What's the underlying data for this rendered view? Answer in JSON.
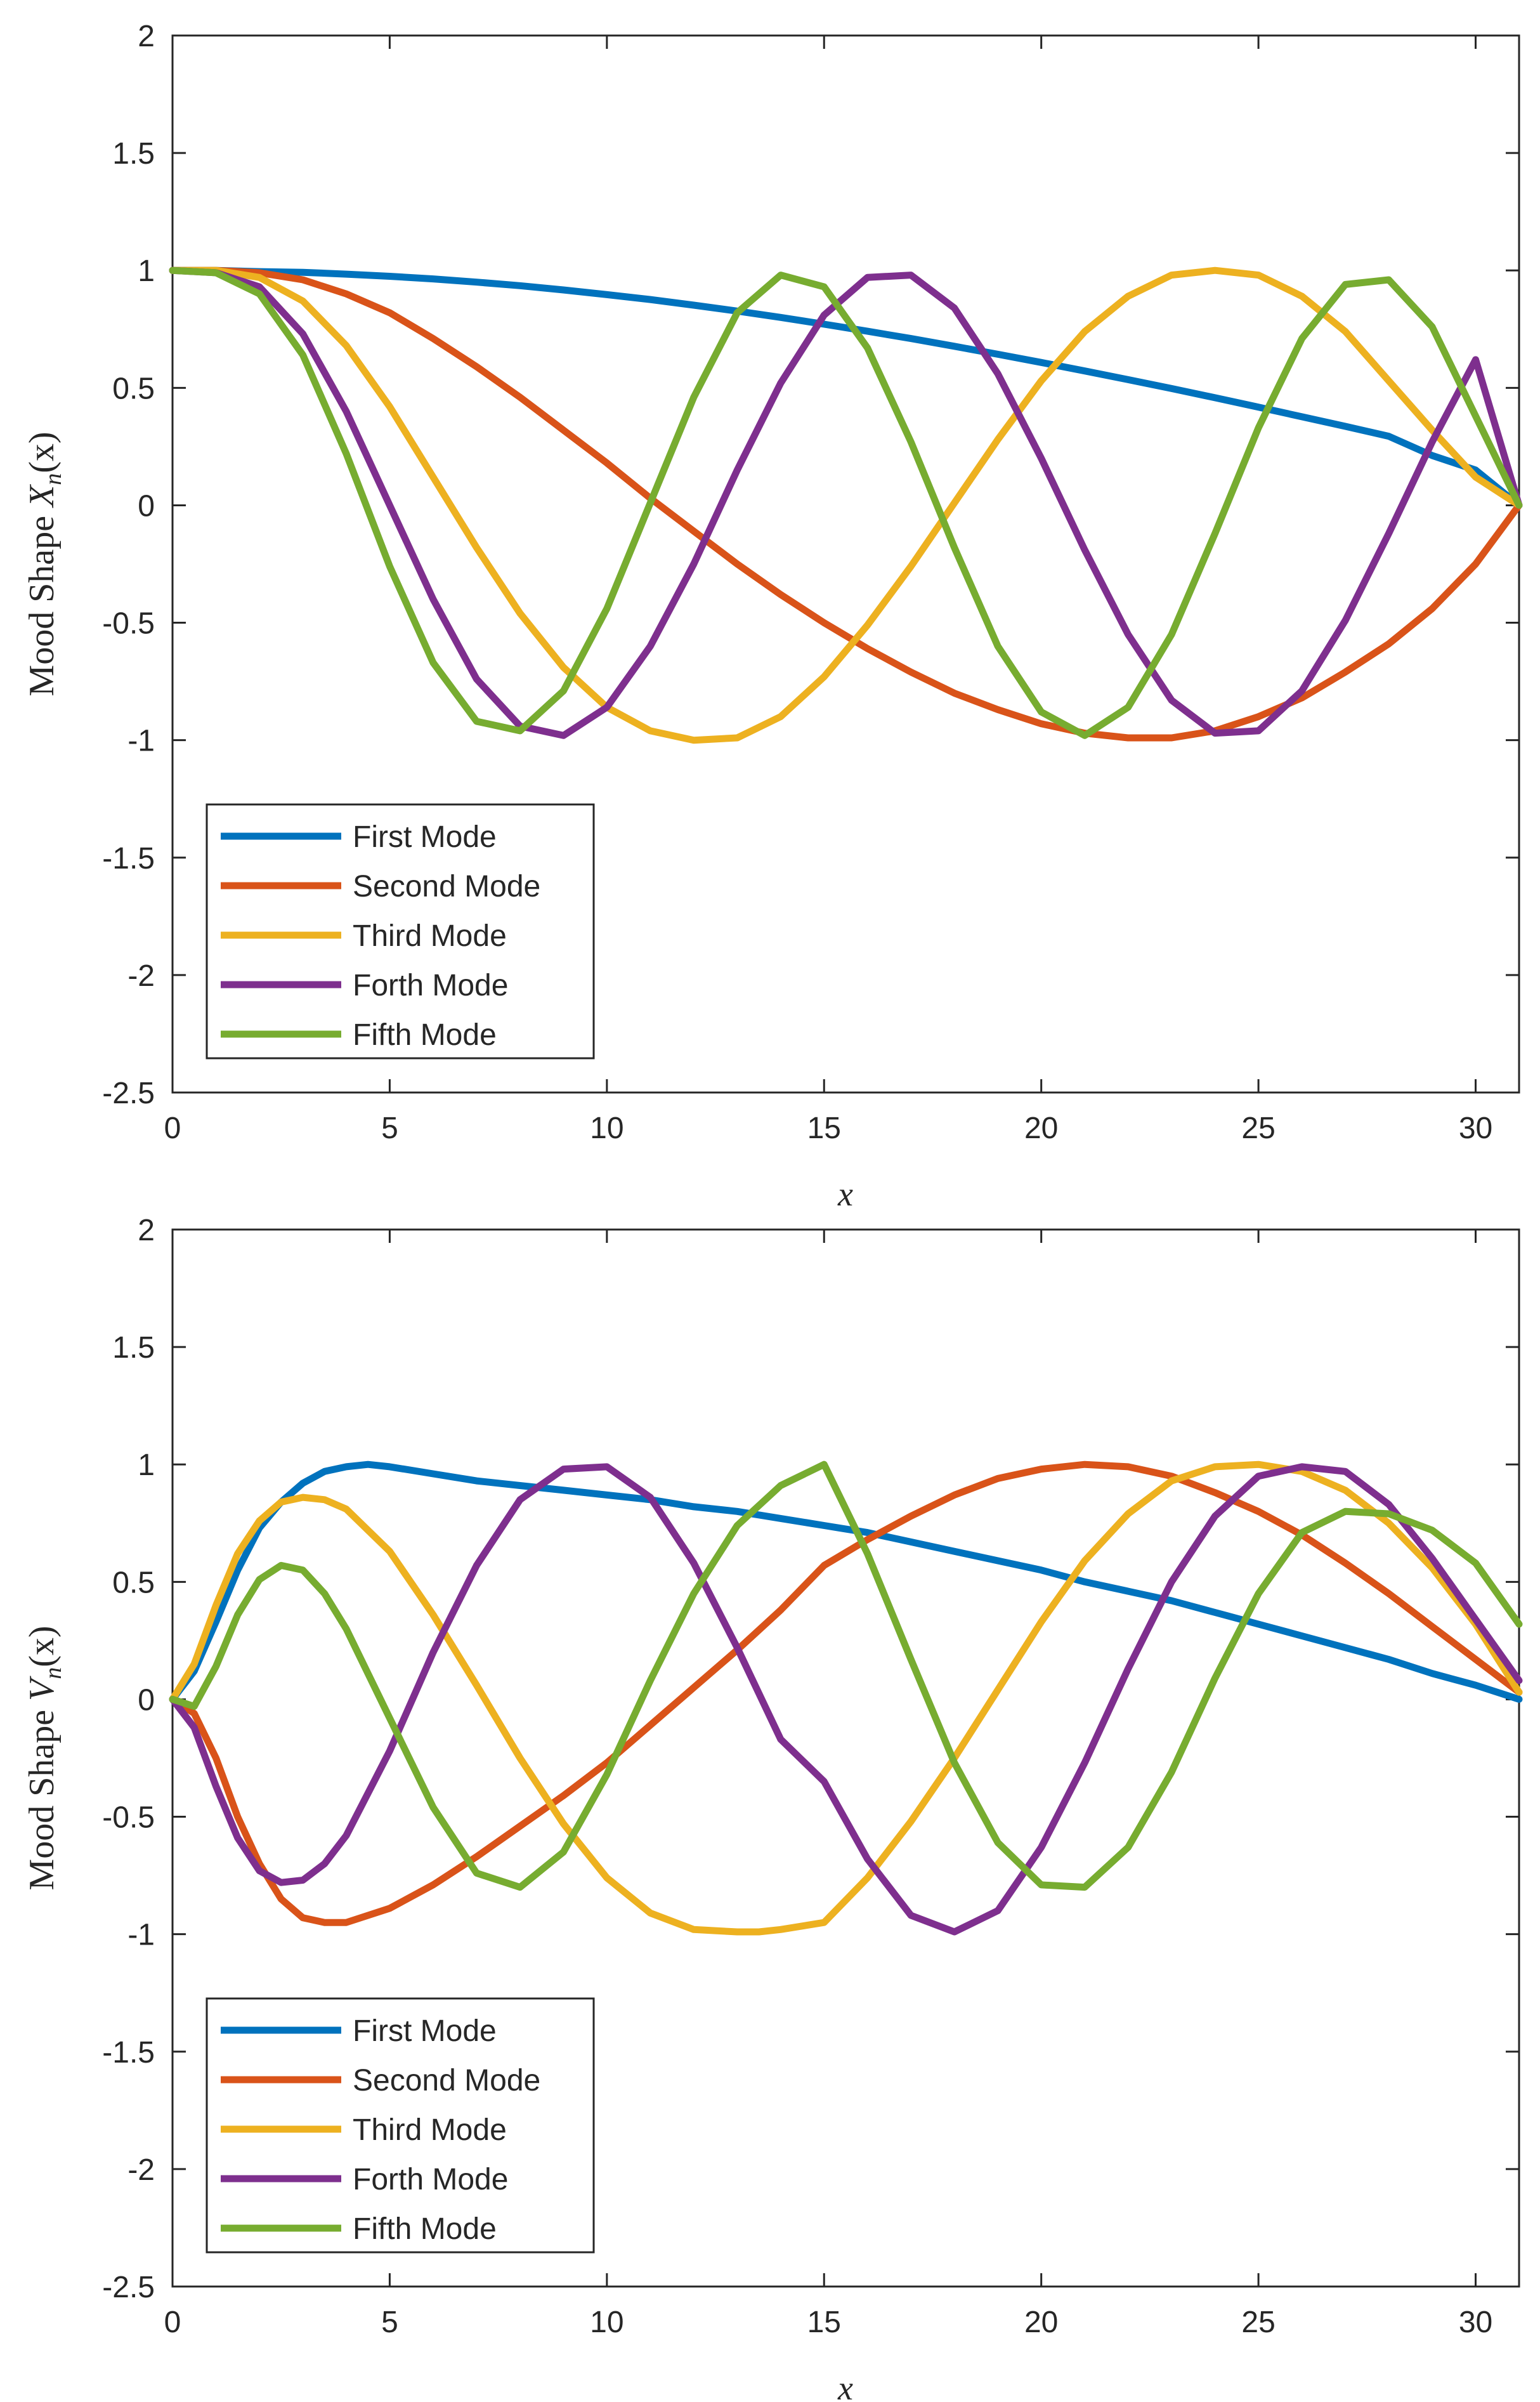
{
  "chart_data": [
    {
      "type": "line",
      "panel": "top",
      "ylabel_prefix": "Mood Shape",
      "ylabel_var": "X",
      "ylabel_sub": "n",
      "ylabel_arg": "(x)",
      "xlabel": "x",
      "xlim": [
        0,
        31
      ],
      "ylim": [
        -2.5,
        2
      ],
      "xticks": [
        0,
        5,
        10,
        15,
        20,
        25,
        30
      ],
      "yticks": [
        2,
        1.5,
        1,
        0.5,
        0,
        -0.5,
        -1,
        -1.5,
        -2,
        -2.5
      ],
      "xtick_labels": [
        "0",
        "5",
        "10",
        "15",
        "20",
        "25",
        "30"
      ],
      "ytick_labels": [
        "2",
        "1.5",
        "1",
        "0.5",
        "0",
        "-0.5",
        "-1",
        "-1.5",
        "-2",
        "-2.5"
      ],
      "legend_position": "lower-left",
      "series": [
        {
          "name": "First Mode",
          "color": "#0072BD",
          "x": [
            0,
            1,
            2,
            3,
            4,
            5,
            6,
            7,
            8,
            9,
            10,
            11,
            12,
            13,
            14,
            15,
            16,
            17,
            18,
            19,
            20,
            21,
            22,
            23,
            24,
            25,
            26,
            27,
            28,
            29,
            30,
            31
          ],
          "y": [
            1.0,
            1.0,
            0.995,
            0.992,
            0.984,
            0.975,
            0.964,
            0.95,
            0.935,
            0.917,
            0.897,
            0.876,
            0.852,
            0.827,
            0.8,
            0.771,
            0.741,
            0.71,
            0.677,
            0.643,
            0.608,
            0.572,
            0.535,
            0.497,
            0.458,
            0.418,
            0.377,
            0.336,
            0.294,
            0.212,
            0.15,
            0.0
          ]
        },
        {
          "name": "Second Mode",
          "color": "#D95319",
          "x": [
            0,
            1,
            2,
            3,
            4,
            5,
            6,
            7,
            8,
            9,
            10,
            11,
            12,
            13,
            14,
            15,
            16,
            17,
            18,
            19,
            20,
            21,
            22,
            23,
            24,
            25,
            26,
            27,
            28,
            29,
            30,
            31
          ],
          "y": [
            1.0,
            1.0,
            0.99,
            0.96,
            0.9,
            0.82,
            0.71,
            0.59,
            0.46,
            0.32,
            0.18,
            0.03,
            -0.11,
            -0.25,
            -0.38,
            -0.5,
            -0.61,
            -0.71,
            -0.8,
            -0.87,
            -0.93,
            -0.97,
            -0.99,
            -0.99,
            -0.96,
            -0.9,
            -0.82,
            -0.71,
            -0.59,
            -0.44,
            -0.25,
            0.0
          ]
        },
        {
          "name": "Third Mode",
          "color": "#EDB120",
          "x": [
            0,
            1,
            2,
            3,
            4,
            5,
            6,
            7,
            8,
            9,
            10,
            11,
            12,
            13,
            14,
            15,
            16,
            17,
            18,
            19,
            20,
            21,
            22,
            23,
            24,
            25,
            26,
            27,
            28,
            29,
            30,
            31
          ],
          "y": [
            1.0,
            1.0,
            0.97,
            0.87,
            0.68,
            0.42,
            0.12,
            -0.18,
            -0.46,
            -0.69,
            -0.86,
            -0.96,
            -1.0,
            -0.99,
            -0.9,
            -0.73,
            -0.51,
            -0.26,
            0.01,
            0.28,
            0.53,
            0.74,
            0.89,
            0.98,
            1.0,
            0.98,
            0.89,
            0.74,
            0.53,
            0.32,
            0.12,
            0.0
          ]
        },
        {
          "name": "Forth Mode",
          "color": "#7E2F8E",
          "x": [
            0,
            1,
            2,
            3,
            4,
            5,
            6,
            7,
            8,
            9,
            10,
            11,
            12,
            13,
            14,
            15,
            16,
            17,
            18,
            19,
            20,
            21,
            22,
            23,
            24,
            25,
            26,
            27,
            28,
            29,
            30,
            31
          ],
          "y": [
            1.0,
            0.99,
            0.93,
            0.73,
            0.4,
            0.0,
            -0.4,
            -0.74,
            -0.94,
            -0.98,
            -0.86,
            -0.6,
            -0.25,
            0.15,
            0.52,
            0.81,
            0.97,
            0.98,
            0.84,
            0.56,
            0.2,
            -0.19,
            -0.55,
            -0.83,
            -0.97,
            -0.96,
            -0.79,
            -0.49,
            -0.12,
            0.27,
            0.62,
            0.0
          ]
        },
        {
          "name": "Fifth Mode",
          "color": "#77AC30",
          "x": [
            0,
            1,
            2,
            3,
            4,
            5,
            6,
            7,
            8,
            9,
            10,
            11,
            12,
            13,
            14,
            15,
            16,
            17,
            18,
            19,
            20,
            21,
            22,
            23,
            24,
            25,
            26,
            27,
            28,
            29,
            30,
            31
          ],
          "y": [
            1.0,
            0.99,
            0.9,
            0.64,
            0.22,
            -0.26,
            -0.67,
            -0.92,
            -0.96,
            -0.79,
            -0.44,
            0.01,
            0.46,
            0.82,
            0.98,
            0.93,
            0.67,
            0.27,
            -0.18,
            -0.6,
            -0.88,
            -0.98,
            -0.86,
            -0.55,
            -0.12,
            0.33,
            0.71,
            0.94,
            0.96,
            0.76,
            0.38,
            0.0
          ]
        }
      ]
    },
    {
      "type": "line",
      "panel": "bottom",
      "ylabel_prefix": "Mood Shape",
      "ylabel_var": "V",
      "ylabel_sub": "n",
      "ylabel_arg": "(x)",
      "xlabel": "x",
      "xlim": [
        0,
        31
      ],
      "ylim": [
        -2.5,
        2
      ],
      "xticks": [
        0,
        5,
        10,
        15,
        20,
        25,
        30
      ],
      "yticks": [
        2,
        1.5,
        1,
        0.5,
        0,
        -0.5,
        -1,
        -1.5,
        -2,
        -2.5
      ],
      "xtick_labels": [
        "0",
        "5",
        "10",
        "15",
        "20",
        "25",
        "30"
      ],
      "ytick_labels": [
        "2",
        "1.5",
        "1",
        "0.5",
        "0",
        "-0.5",
        "-1",
        "-1.5",
        "-2",
        "-2.5"
      ],
      "legend_position": "lower-left",
      "series": [
        {
          "name": "First Mode",
          "color": "#0072BD",
          "x": [
            0,
            0.5,
            1,
            1.5,
            2,
            2.5,
            3,
            3.5,
            4,
            4.5,
            5,
            6,
            7,
            8,
            9,
            10,
            11,
            12,
            13,
            14,
            15,
            16,
            17,
            18,
            19,
            20,
            21,
            22,
            23,
            24,
            25,
            26,
            27,
            28,
            29,
            30,
            31
          ],
          "y": [
            0.0,
            0.12,
            0.33,
            0.55,
            0.73,
            0.84,
            0.92,
            0.97,
            0.99,
            1.0,
            0.99,
            0.96,
            0.93,
            0.91,
            0.89,
            0.87,
            0.85,
            0.82,
            0.8,
            0.77,
            0.74,
            0.71,
            0.67,
            0.63,
            0.59,
            0.55,
            0.5,
            0.46,
            0.42,
            0.37,
            0.32,
            0.27,
            0.22,
            0.17,
            0.11,
            0.06,
            0.0
          ]
        },
        {
          "name": "Second Mode",
          "color": "#D95319",
          "x": [
            0,
            0.5,
            1,
            1.5,
            2,
            2.5,
            3,
            3.5,
            4,
            5,
            6,
            7,
            8,
            9,
            10,
            11,
            12,
            13,
            14,
            15,
            16,
            17,
            18,
            19,
            20,
            21,
            22,
            23,
            24,
            25,
            26,
            27,
            28,
            29,
            30,
            31
          ],
          "y": [
            0.0,
            -0.06,
            -0.25,
            -0.5,
            -0.7,
            -0.85,
            -0.93,
            -0.95,
            -0.95,
            -0.89,
            -0.79,
            -0.67,
            -0.54,
            -0.41,
            -0.27,
            -0.11,
            0.05,
            0.21,
            0.38,
            0.57,
            0.68,
            0.78,
            0.87,
            0.94,
            0.98,
            1.0,
            0.99,
            0.95,
            0.88,
            0.8,
            0.7,
            0.58,
            0.45,
            0.31,
            0.17,
            0.03
          ]
        },
        {
          "name": "Third Mode",
          "color": "#EDB120",
          "x": [
            0,
            0.5,
            1,
            1.5,
            2,
            2.5,
            3,
            3.5,
            4,
            5,
            6,
            7,
            8,
            9,
            10,
            11,
            12,
            13,
            13.5,
            14,
            15,
            16,
            17,
            18,
            19,
            20,
            21,
            22,
            23,
            24,
            25,
            26,
            27,
            28,
            29,
            30,
            31
          ],
          "y": [
            0.0,
            0.15,
            0.4,
            0.62,
            0.76,
            0.84,
            0.86,
            0.85,
            0.81,
            0.63,
            0.36,
            0.06,
            -0.25,
            -0.53,
            -0.76,
            -0.91,
            -0.98,
            -0.99,
            -0.99,
            -0.98,
            -0.95,
            -0.76,
            -0.52,
            -0.25,
            0.04,
            0.33,
            0.59,
            0.79,
            0.93,
            0.99,
            1.0,
            0.97,
            0.89,
            0.75,
            0.56,
            0.32,
            0.03
          ]
        },
        {
          "name": "Forth Mode",
          "color": "#7E2F8E",
          "x": [
            0,
            0.5,
            1,
            1.5,
            2,
            2.5,
            3,
            3.5,
            4,
            5,
            6,
            7,
            8,
            9,
            10,
            11,
            12,
            13,
            14,
            15,
            16,
            17,
            18,
            19,
            20,
            21,
            22,
            23,
            24,
            25,
            26,
            27,
            28,
            29,
            30,
            31
          ],
          "y": [
            0.0,
            -0.12,
            -0.37,
            -0.59,
            -0.73,
            -0.78,
            -0.77,
            -0.7,
            -0.58,
            -0.22,
            0.2,
            0.57,
            0.85,
            0.98,
            0.99,
            0.86,
            0.58,
            0.22,
            -0.17,
            -0.35,
            -0.68,
            -0.92,
            -0.99,
            -0.9,
            -0.63,
            -0.27,
            0.13,
            0.5,
            0.78,
            0.95,
            0.99,
            0.97,
            0.83,
            0.6,
            0.34,
            0.08
          ]
        },
        {
          "name": "Fifth Mode",
          "color": "#77AC30",
          "x": [
            0,
            0.5,
            1,
            1.5,
            2,
            2.5,
            3,
            3.5,
            4,
            5,
            6,
            7,
            8,
            9,
            10,
            11,
            12,
            13,
            14,
            15,
            16,
            17,
            18,
            19,
            20,
            21,
            22,
            23,
            24,
            25,
            26,
            27,
            28,
            29,
            30,
            31
          ],
          "y": [
            0.0,
            -0.03,
            0.14,
            0.36,
            0.51,
            0.57,
            0.55,
            0.45,
            0.3,
            -0.08,
            -0.46,
            -0.74,
            -0.8,
            -0.65,
            -0.32,
            0.08,
            0.45,
            0.74,
            0.91,
            1.0,
            0.62,
            0.17,
            -0.27,
            -0.61,
            -0.79,
            -0.8,
            -0.63,
            -0.31,
            0.09,
            0.45,
            0.71,
            0.8,
            0.79,
            0.72,
            0.58,
            0.32
          ]
        }
      ]
    }
  ]
}
